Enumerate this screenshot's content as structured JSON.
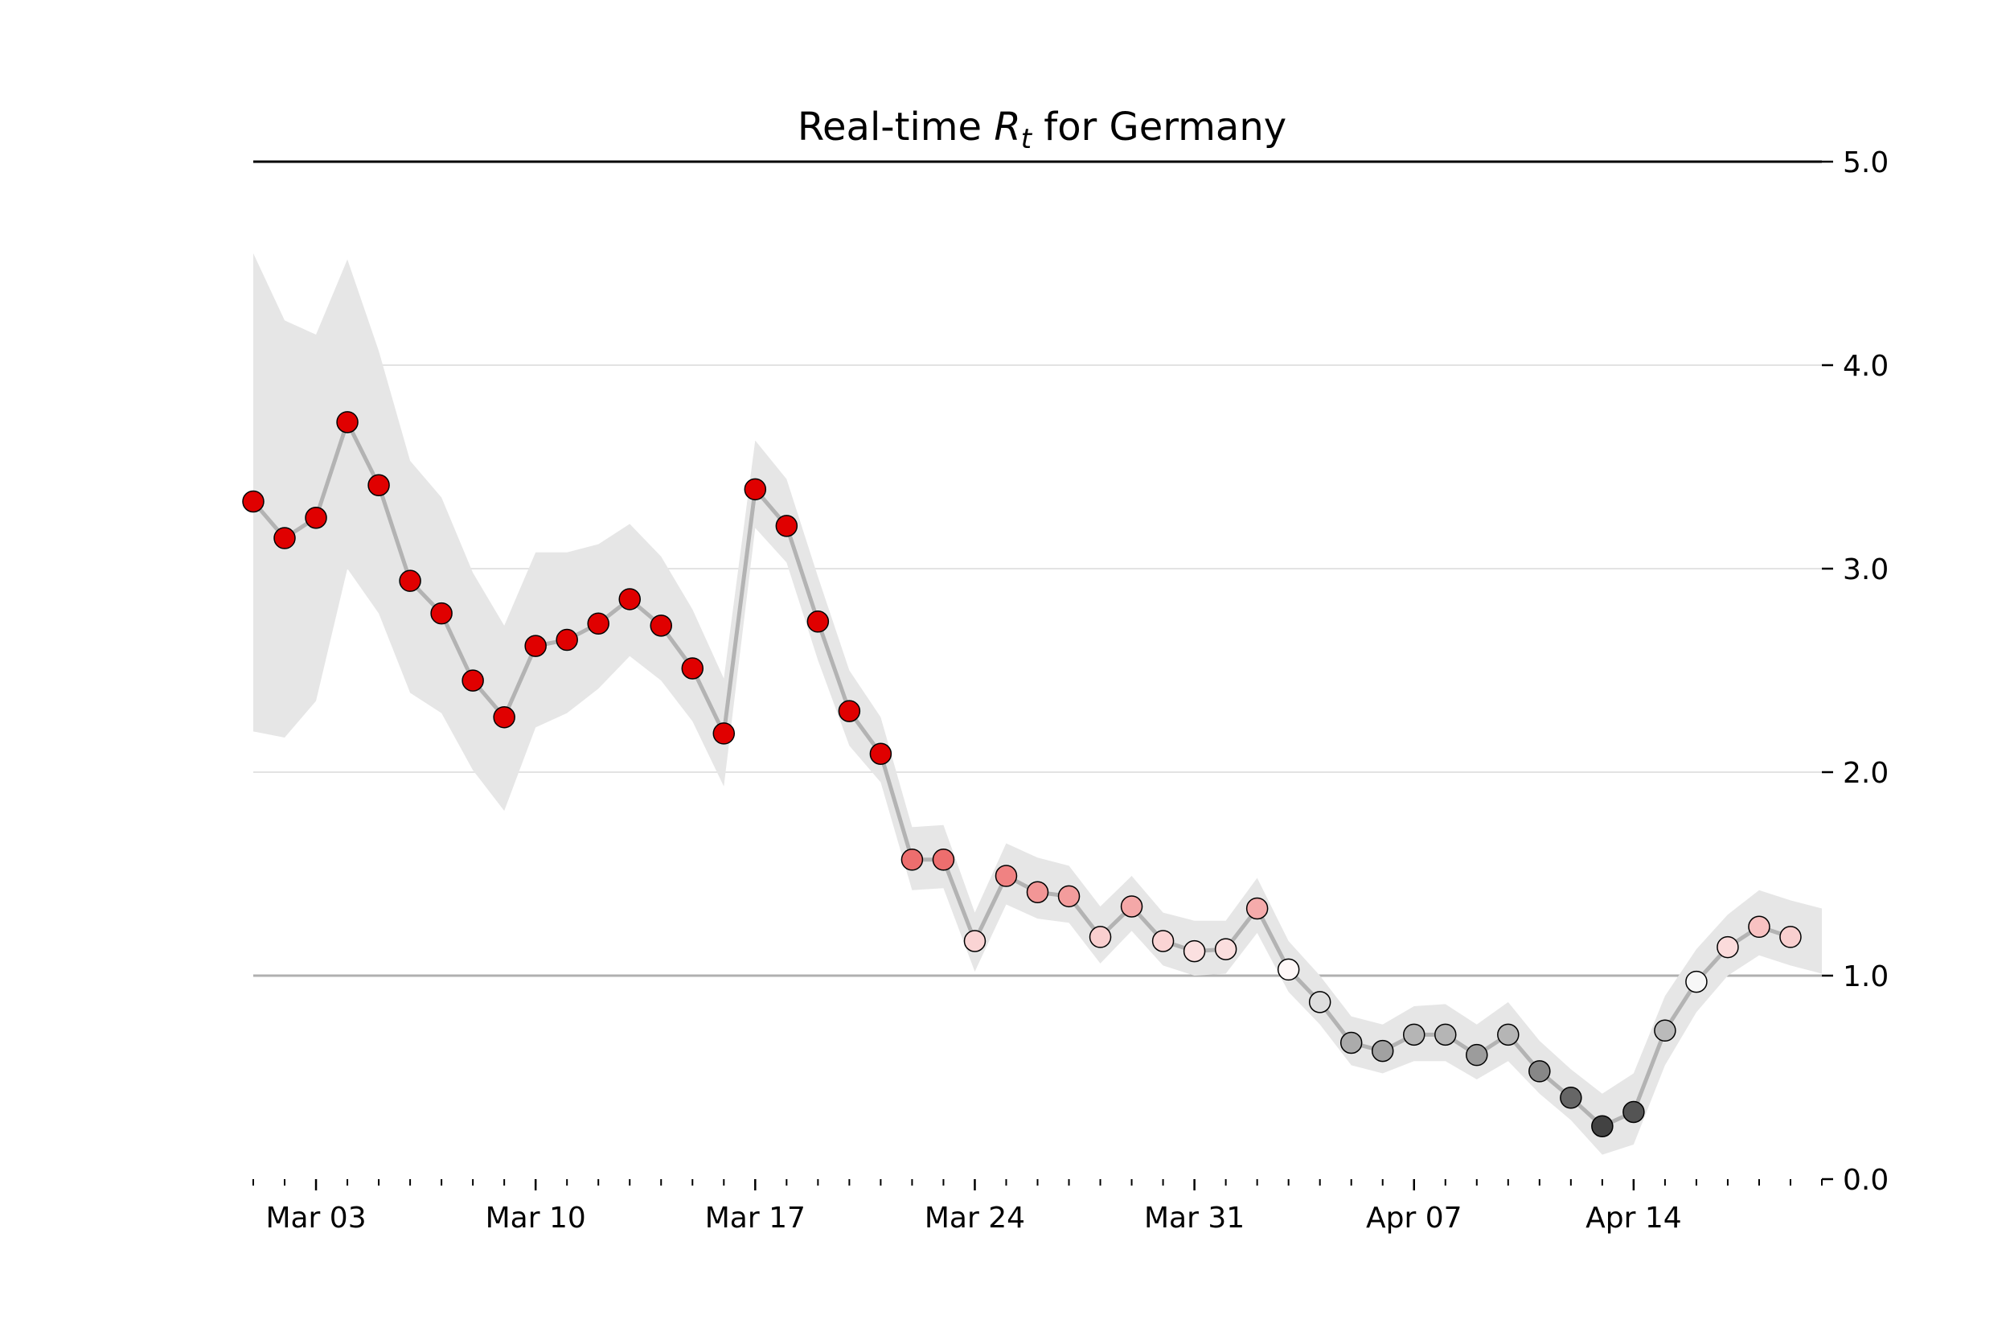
{
  "chart_data": {
    "type": "line",
    "title": {
      "prefix": "Real-time ",
      "symbol": "R",
      "subscript": "t",
      "suffix": " for Germany"
    },
    "xlabel": "",
    "ylabel": "",
    "ylim": [
      0.0,
      5.0
    ],
    "y_axis_side": "right",
    "y_ticks": [
      0.0,
      1.0,
      2.0,
      3.0,
      4.0,
      5.0
    ],
    "y_tick_labels": [
      "0.0",
      "1.0",
      "2.0",
      "3.0",
      "4.0",
      "5.0"
    ],
    "x_range": [
      "2020-03-01",
      "2020-04-20"
    ],
    "x_ticks": [
      {
        "date": "2020-03-03",
        "label": "Mar 03"
      },
      {
        "date": "2020-03-10",
        "label": "Mar 10"
      },
      {
        "date": "2020-03-17",
        "label": "Mar 17"
      },
      {
        "date": "2020-03-24",
        "label": "Mar 24"
      },
      {
        "date": "2020-03-31",
        "label": "Mar 31"
      },
      {
        "date": "2020-04-07",
        "label": "Apr 07"
      },
      {
        "date": "2020-04-14",
        "label": "Apr 14"
      }
    ],
    "x_minor_ticks": "daily",
    "grid": "horizontal",
    "reference_line": 1.0,
    "colormap": {
      "low": "#000000",
      "mid": "#ffffff",
      "high": "#e00000",
      "vmin": 0.0,
      "vmax": 2.0
    },
    "colors": {
      "line": "#b3b3b3",
      "band": "#e6e6e6",
      "grid": "#e3e3e3",
      "reference": "#b0b0b0",
      "top_spine": "#000000",
      "marker_edge": "#000000"
    },
    "series": [
      {
        "x": [
          "2020-03-01",
          "2020-03-02",
          "2020-03-03",
          "2020-03-04",
          "2020-03-05",
          "2020-03-06",
          "2020-03-07",
          "2020-03-08",
          "2020-03-09",
          "2020-03-10",
          "2020-03-11",
          "2020-03-12",
          "2020-03-13",
          "2020-03-14",
          "2020-03-15",
          "2020-03-16",
          "2020-03-17",
          "2020-03-18",
          "2020-03-19",
          "2020-03-20",
          "2020-03-21",
          "2020-03-22",
          "2020-03-23",
          "2020-03-24",
          "2020-03-25",
          "2020-03-26",
          "2020-03-27",
          "2020-03-28",
          "2020-03-29",
          "2020-03-30",
          "2020-03-31",
          "2020-04-01",
          "2020-04-02",
          "2020-04-03",
          "2020-04-04",
          "2020-04-05",
          "2020-04-06",
          "2020-04-07",
          "2020-04-08",
          "2020-04-09",
          "2020-04-10",
          "2020-04-11",
          "2020-04-12",
          "2020-04-13",
          "2020-04-14",
          "2020-04-15",
          "2020-04-16",
          "2020-04-17",
          "2020-04-18",
          "2020-04-19"
        ],
        "y": [
          3.33,
          3.15,
          3.25,
          3.72,
          3.41,
          2.94,
          2.78,
          2.45,
          2.27,
          2.62,
          2.65,
          2.73,
          2.85,
          2.72,
          2.51,
          2.19,
          3.39,
          3.21,
          2.74,
          2.3,
          2.09,
          1.57,
          1.57,
          1.17,
          1.49,
          1.41,
          1.39,
          1.19,
          1.34,
          1.17,
          1.12,
          1.13,
          1.33,
          1.03,
          0.87,
          0.67,
          0.63,
          0.71,
          0.71,
          0.61,
          0.71,
          0.53,
          0.4,
          0.26,
          0.33,
          0.73,
          0.97,
          1.14,
          1.24,
          1.19
        ],
        "lower": [
          2.2,
          2.17,
          2.35,
          3.0,
          2.78,
          2.39,
          2.29,
          2.01,
          1.81,
          2.22,
          2.29,
          2.41,
          2.57,
          2.45,
          2.25,
          1.93,
          3.2,
          3.03,
          2.55,
          2.13,
          1.95,
          1.42,
          1.43,
          1.02,
          1.35,
          1.28,
          1.26,
          1.06,
          1.22,
          1.05,
          1.0,
          1.01,
          1.21,
          0.92,
          0.76,
          0.56,
          0.52,
          0.58,
          0.58,
          0.49,
          0.58,
          0.42,
          0.29,
          0.12,
          0.17,
          0.56,
          0.82,
          1.0,
          1.1,
          1.05
        ],
        "upper": [
          4.55,
          4.22,
          4.15,
          4.52,
          4.07,
          3.53,
          3.35,
          2.98,
          2.72,
          3.08,
          3.08,
          3.12,
          3.22,
          3.06,
          2.8,
          2.46,
          3.63,
          3.44,
          2.96,
          2.5,
          2.27,
          1.73,
          1.74,
          1.31,
          1.65,
          1.58,
          1.54,
          1.34,
          1.49,
          1.31,
          1.27,
          1.27,
          1.48,
          1.17,
          1.0,
          0.8,
          0.76,
          0.85,
          0.86,
          0.76,
          0.87,
          0.68,
          0.54,
          0.42,
          0.52,
          0.9,
          1.13,
          1.3,
          1.42,
          1.37
        ],
        "upper_end": {
          "x": "2020-04-20",
          "value": 1.33
        },
        "lower_end": {
          "x": "2020-04-20",
          "value": 1.01
        }
      }
    ]
  }
}
